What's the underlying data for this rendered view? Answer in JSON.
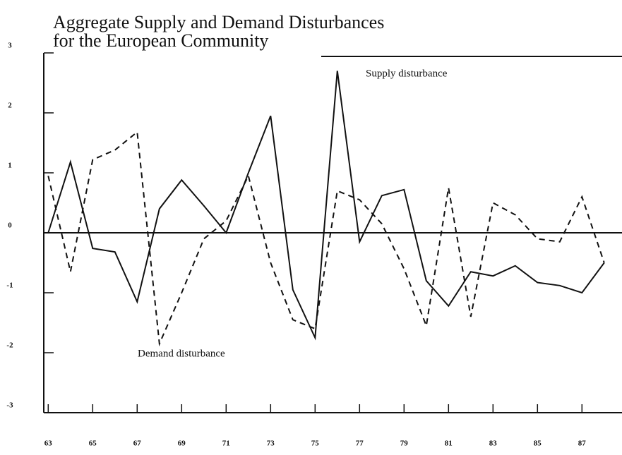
{
  "chart_data": {
    "type": "line",
    "title": [
      "Aggregate Supply and Demand Disturbances",
      "for the European Community"
    ],
    "x": [
      63,
      64,
      65,
      66,
      67,
      68,
      69,
      70,
      71,
      72,
      73,
      74,
      75,
      76,
      77,
      78,
      79,
      80,
      81,
      82,
      83,
      84,
      85,
      86,
      87,
      88
    ],
    "series": [
      {
        "name": "Supply disturbance",
        "color": "#111111",
        "dash": false,
        "values": [
          0,
          1.18,
          -0.26,
          -0.32,
          -1.15,
          0.4,
          0.88,
          0.45,
          0,
          1.0,
          1.95,
          -0.95,
          -1.75,
          2.7,
          -0.15,
          0.62,
          0.72,
          -0.8,
          -1.22,
          -0.65,
          -0.72,
          -0.55,
          -0.83,
          -0.88,
          -1.0,
          -0.5
        ]
      },
      {
        "name": "Demand disturbance",
        "color": "#111111",
        "dash": true,
        "values": [
          0.95,
          -0.65,
          1.22,
          1.38,
          1.68,
          -1.85,
          -1.0,
          -0.1,
          0.2,
          0.95,
          -0.5,
          -1.45,
          -1.6,
          0.7,
          0.55,
          0.15,
          -0.6,
          -1.55,
          0.75,
          -1.4,
          0.5,
          0.3,
          -0.1,
          -0.15,
          0.6,
          -0.5
        ]
      }
    ],
    "xlim": [
      62.8,
      88.8
    ],
    "xticks": [
      63,
      65,
      67,
      69,
      71,
      73,
      75,
      77,
      79,
      81,
      83,
      85,
      87
    ],
    "ylim": [
      -3,
      3
    ],
    "yticks": [
      -3,
      -2,
      -1,
      0,
      1,
      2,
      3
    ]
  }
}
